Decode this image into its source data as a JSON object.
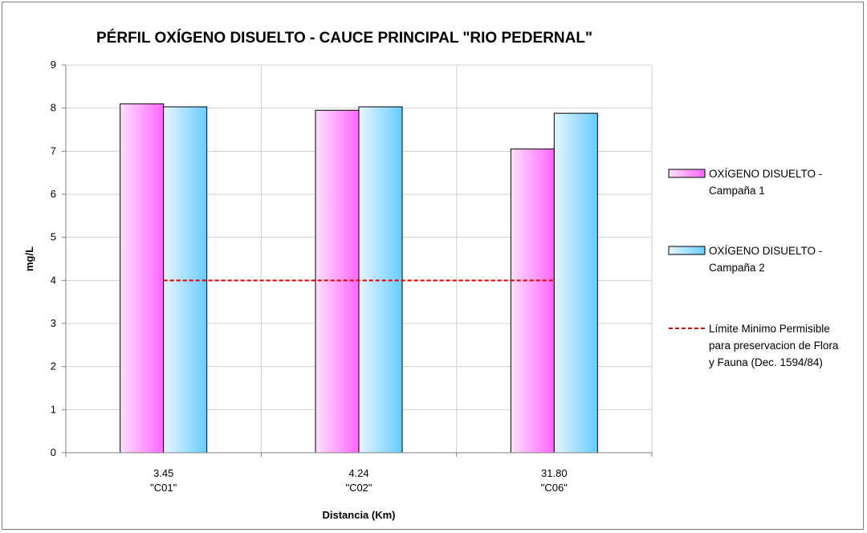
{
  "chart_data": {
    "type": "bar",
    "title": "PÉRFIL OXÍGENO DISUELTO - CAUCE PRINCIPAL \"RIO PEDERNAL\"",
    "xlabel": "Distancia (Km)",
    "ylabel": "mg/L",
    "ylim": [
      0,
      9
    ],
    "yticks": [
      0,
      1,
      2,
      3,
      4,
      5,
      6,
      7,
      8,
      9
    ],
    "categories": [
      {
        "distance": "3.45",
        "station": "\"C01\""
      },
      {
        "distance": "4.24",
        "station": "\"C02\""
      },
      {
        "distance": "31.80",
        "station": "\"C06\""
      }
    ],
    "series": [
      {
        "name_lines": [
          "OXÍGENO DISUELTO  -",
          "Campaña 1"
        ],
        "values": [
          8.1,
          7.95,
          7.05
        ],
        "color_light": "#fde0fd",
        "color_dark": "#ff66ff"
      },
      {
        "name_lines": [
          "OXÍGENO DISUELTO -",
          "Campaña 2"
        ],
        "values": [
          8.03,
          8.03,
          7.88
        ],
        "color_light": "#e6f6ff",
        "color_dark": "#66ccff"
      }
    ],
    "reference_line": {
      "name_lines": [
        "Límite Minimo Permisible",
        "para preservacion de Flora",
        "y Fauna (Dec. 1594/84)"
      ],
      "value": 4,
      "color": "#e00000"
    },
    "grid": true,
    "legend_position": "right"
  }
}
